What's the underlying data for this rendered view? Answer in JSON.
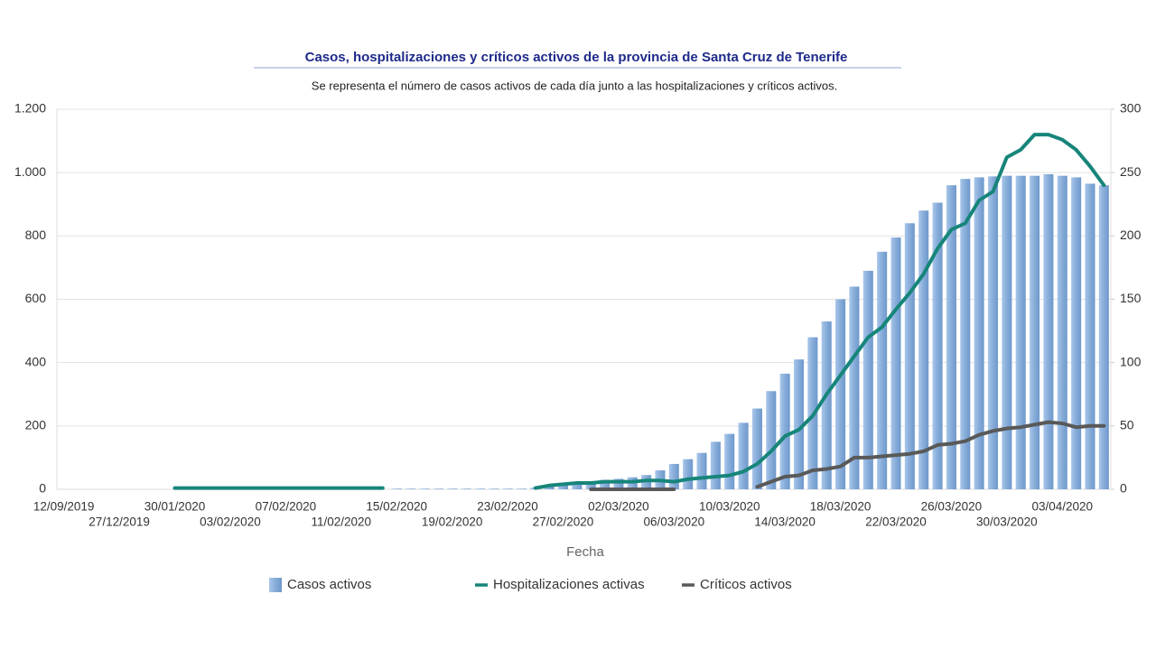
{
  "chart_data": {
    "type": "bar-line",
    "title": "Casos, hospitalizaciones y críticos activos de la provincia de Santa Cruz de Tenerife",
    "subtitle": "Se representa el número de casos activos de cada día junto a las hospitalizaciones y críticos activos.",
    "x_label": "Fecha",
    "categories": [
      "12/09/2019",
      null,
      null,
      null,
      "27/12/2019",
      null,
      null,
      null,
      "30/01/2020",
      null,
      null,
      null,
      "03/02/2020",
      null,
      null,
      null,
      "07/02/2020",
      null,
      null,
      null,
      "11/02/2020",
      null,
      null,
      null,
      "15/02/2020",
      null,
      null,
      null,
      "19/02/2020",
      null,
      null,
      null,
      "23/02/2020",
      null,
      null,
      null,
      "27/02/2020",
      null,
      null,
      null,
      "02/03/2020",
      null,
      null,
      null,
      "06/03/2020",
      null,
      null,
      null,
      "10/03/2020",
      null,
      null,
      null,
      "14/03/2020",
      null,
      null,
      null,
      "18/03/2020",
      null,
      null,
      null,
      "22/03/2020",
      null,
      null,
      null,
      "26/03/2020",
      null,
      null,
      null,
      "30/03/2020",
      null,
      null,
      null,
      "03/04/2020",
      null,
      null,
      null
    ],
    "series": [
      {
        "name": "Casos activos",
        "type": "bar",
        "color": "#86acd9",
        "values": [
          null,
          null,
          null,
          null,
          null,
          null,
          null,
          null,
          null,
          null,
          null,
          null,
          null,
          null,
          null,
          null,
          null,
          null,
          null,
          null,
          null,
          null,
          null,
          null,
          2,
          2,
          2,
          2,
          2,
          2,
          2,
          2,
          2,
          2,
          5,
          10,
          15,
          20,
          25,
          30,
          33,
          38,
          45,
          60,
          80,
          95,
          115,
          150,
          175,
          210,
          255,
          310,
          365,
          410,
          480,
          530,
          600,
          640,
          690,
          750,
          795,
          840,
          880,
          905,
          960,
          980,
          985,
          988,
          990,
          990,
          990,
          995,
          990,
          985,
          965,
          960
        ]
      },
      {
        "name": "Hospitalizaciones activas",
        "type": "line",
        "axis": "y2",
        "color": "#17857a",
        "values": [
          null,
          null,
          null,
          null,
          null,
          null,
          null,
          null,
          1,
          1,
          1,
          1,
          1,
          1,
          1,
          1,
          1,
          1,
          1,
          1,
          1,
          1,
          1,
          1,
          null,
          null,
          null,
          null,
          null,
          null,
          null,
          null,
          null,
          null,
          1,
          3,
          4,
          5,
          5,
          6,
          6,
          6,
          7,
          7,
          6,
          8,
          9,
          10,
          11,
          14,
          20,
          30,
          42,
          47,
          58,
          75,
          90,
          105,
          120,
          128,
          142,
          155,
          170,
          190,
          205,
          210,
          228,
          235,
          262,
          268,
          280,
          280,
          276,
          268,
          255,
          240
        ]
      },
      {
        "name": "Críticos activos",
        "type": "line",
        "axis": "y2",
        "color": "#595959",
        "values": [
          null,
          null,
          null,
          null,
          null,
          null,
          null,
          null,
          null,
          null,
          null,
          null,
          null,
          null,
          null,
          null,
          null,
          null,
          null,
          null,
          null,
          null,
          null,
          null,
          null,
          null,
          null,
          null,
          null,
          null,
          null,
          null,
          null,
          null,
          null,
          null,
          null,
          null,
          0,
          0,
          0,
          0,
          0,
          0,
          0,
          null,
          null,
          null,
          null,
          null,
          2,
          6,
          10,
          11,
          15,
          16,
          18,
          25,
          25,
          26,
          27,
          28,
          30,
          35,
          36,
          38,
          43,
          46,
          48,
          49,
          51,
          53,
          52,
          49,
          50,
          50
        ]
      }
    ],
    "ylim": [
      0,
      1200
    ],
    "yticks": [
      0,
      200,
      400,
      600,
      800,
      {
        "value": 1000,
        "label": "1.000"
      },
      {
        "value": 1200,
        "label": "1.200"
      }
    ],
    "y2lim": [
      0,
      300
    ],
    "y2ticks": [
      0,
      50,
      100,
      150,
      200,
      250,
      300
    ],
    "grid": true,
    "legend": "bottom"
  }
}
